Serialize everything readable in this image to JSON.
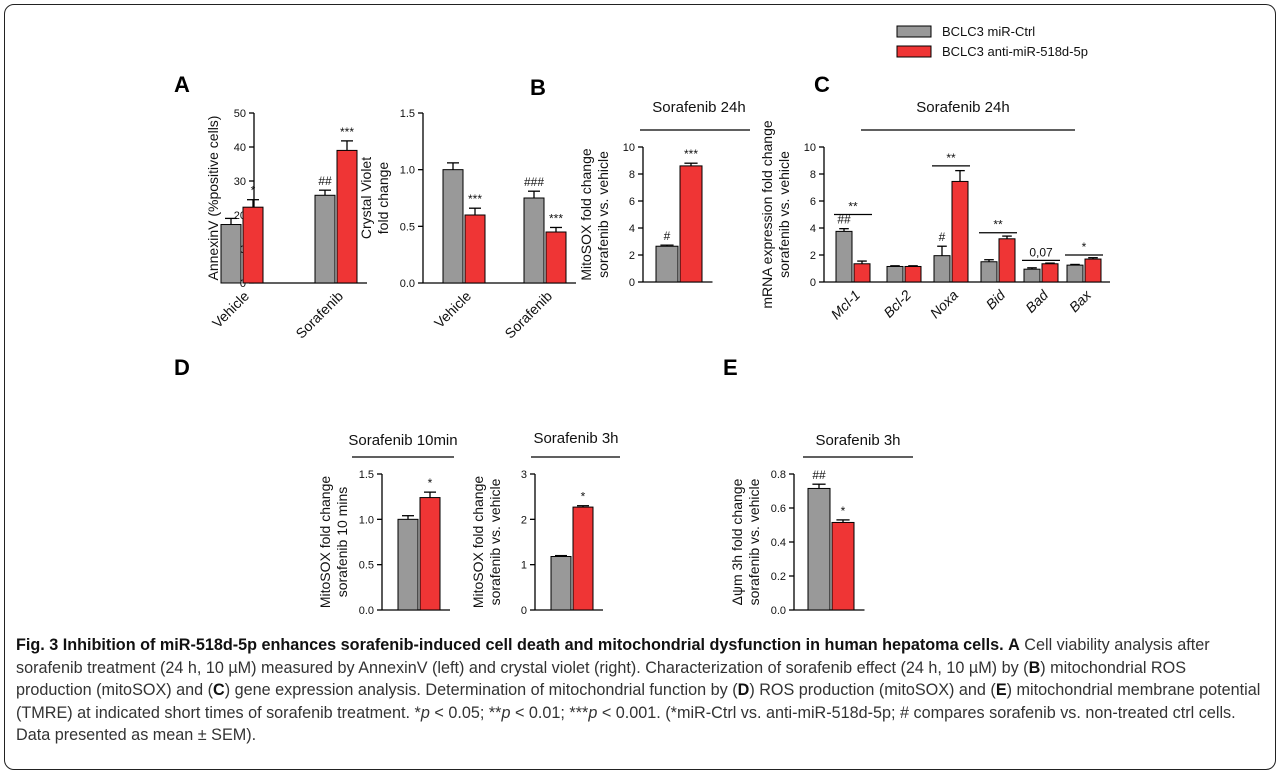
{
  "colors": {
    "ctrl": "#999999",
    "anti": "#ef3535",
    "axis": "#000000"
  },
  "legend": [
    {
      "name": "BCLC3 miR-Ctrl",
      "color": "#999999"
    },
    {
      "name": "BCLC3 anti-miR-518d-5p",
      "color": "#ef3535"
    }
  ],
  "panels": [
    "A",
    "B",
    "C",
    "D",
    "E"
  ],
  "chart_data": [
    {
      "id": "A1",
      "panel": "A",
      "type": "bar",
      "title": "",
      "xlabel": "",
      "ylabel": "AnnexinV (%positive cells)",
      "ylim": [
        0,
        50
      ],
      "yticks": [
        "0",
        "10",
        "20",
        "30",
        "40",
        "50"
      ],
      "categories": [
        "Vehicle",
        "Sorafenib"
      ],
      "category_italic": false,
      "series": [
        {
          "name": "BCLC3 miR-Ctrl",
          "values": [
            17.2,
            25.8
          ],
          "errors": [
            1.8,
            1.5
          ]
        },
        {
          "name": "BCLC3 anti-miR-518d-5p",
          "values": [
            22.3,
            39.0
          ],
          "errors": [
            2.2,
            2.8
          ]
        }
      ],
      "annotations": [
        {
          "text": "*",
          "series": 1,
          "cat": 0
        },
        {
          "text": "##",
          "series": 0,
          "cat": 1
        },
        {
          "text": "***",
          "series": 1,
          "cat": 1
        }
      ]
    },
    {
      "id": "A2",
      "panel": "A",
      "type": "bar",
      "title": "",
      "xlabel": "",
      "ylabel": "Crystal Violet|fold change",
      "ylim": [
        0,
        1.5
      ],
      "yticks": [
        "0.0",
        "0.5",
        "1.0",
        "1.5"
      ],
      "categories": [
        "Vehicle",
        "Sorafenib"
      ],
      "category_italic": false,
      "series": [
        {
          "name": "BCLC3 miR-Ctrl",
          "values": [
            1.0,
            0.75
          ],
          "errors": [
            0.06,
            0.06
          ]
        },
        {
          "name": "BCLC3 anti-miR-518d-5p",
          "values": [
            0.6,
            0.45
          ],
          "errors": [
            0.06,
            0.04
          ]
        }
      ],
      "annotations": [
        {
          "text": "***",
          "series": 1,
          "cat": 0
        },
        {
          "text": "###",
          "series": 0,
          "cat": 1
        },
        {
          "text": "***",
          "series": 1,
          "cat": 1
        }
      ]
    },
    {
      "id": "B",
      "panel": "B",
      "type": "bar",
      "title": "Sorafenib 24h",
      "xlabel": "",
      "ylabel": "MitoSOX fold change|sorafenib vs. vehicle",
      "ylim": [
        0,
        10
      ],
      "yticks": [
        "0",
        "2",
        "4",
        "6",
        "8",
        "10"
      ],
      "categories": [
        ""
      ],
      "category_italic": false,
      "series": [
        {
          "name": "BCLC3 miR-Ctrl",
          "values": [
            2.65
          ],
          "errors": [
            0.08
          ]
        },
        {
          "name": "BCLC3 anti-miR-518d-5p",
          "values": [
            8.6
          ],
          "errors": [
            0.2
          ]
        }
      ],
      "annotations": [
        {
          "text": "#",
          "series": 0,
          "cat": 0
        },
        {
          "text": "***",
          "series": 1,
          "cat": 0
        }
      ]
    },
    {
      "id": "C",
      "panel": "C",
      "type": "bar",
      "title": "Sorafenib 24h",
      "xlabel": "",
      "ylabel": "mRNA expression fold change|sorafenib vs. vehicle",
      "ylim": [
        0,
        10
      ],
      "yticks": [
        "0",
        "2",
        "4",
        "6",
        "8",
        "10"
      ],
      "categories": [
        "Mcl-1",
        "Bcl-2",
        "Noxa",
        "Bid",
        "Bad",
        "Bax"
      ],
      "category_italic": true,
      "series": [
        {
          "name": "BCLC3 miR-Ctrl",
          "values": [
            3.75,
            1.15,
            1.95,
            1.5,
            0.95,
            1.25
          ],
          "errors": [
            0.2,
            0.05,
            0.7,
            0.15,
            0.1,
            0.05
          ]
        },
        {
          "name": "BCLC3 anti-miR-518d-5p",
          "values": [
            1.35,
            1.15,
            7.45,
            3.2,
            1.35,
            1.7
          ],
          "errors": [
            0.2,
            0.05,
            0.8,
            0.2,
            0.05,
            0.1
          ]
        }
      ],
      "annotations": [
        {
          "text": "##",
          "series": 0,
          "cat": 0
        },
        {
          "text": "#",
          "series": 0,
          "cat": 2
        }
      ],
      "brackets": [
        {
          "text": "**",
          "cat": 0,
          "y": 5.0
        },
        {
          "text": "**",
          "cat": 2,
          "y": 8.6
        },
        {
          "text": "**",
          "cat": 3,
          "y": 3.65
        },
        {
          "text": "0,07",
          "cat": 4,
          "y": 1.6
        },
        {
          "text": "*",
          "cat": 5,
          "y": 2.0
        }
      ]
    },
    {
      "id": "D1",
      "panel": "D",
      "type": "bar",
      "title": "Sorafenib 10min",
      "xlabel": "",
      "ylabel": "MitoSOX fold change|sorafenib 10 mins",
      "ylim": [
        0,
        1.5
      ],
      "yticks": [
        "0.0",
        "0.5",
        "1.0",
        "1.5"
      ],
      "categories": [
        ""
      ],
      "category_italic": false,
      "series": [
        {
          "name": "BCLC3 miR-Ctrl",
          "values": [
            1.0
          ],
          "errors": [
            0.04
          ]
        },
        {
          "name": "BCLC3 anti-miR-518d-5p",
          "values": [
            1.24
          ],
          "errors": [
            0.06
          ]
        }
      ],
      "annotations": [
        {
          "text": "*",
          "series": 1,
          "cat": 0
        }
      ]
    },
    {
      "id": "D2",
      "panel": "D",
      "type": "bar",
      "title": "Sorafenib 3h",
      "xlabel": "",
      "ylabel": "MitoSOX fold change|sorafenib vs. vehicle",
      "ylim": [
        0,
        3
      ],
      "yticks": [
        "0",
        "1",
        "2",
        "3"
      ],
      "categories": [
        ""
      ],
      "category_italic": false,
      "series": [
        {
          "name": "BCLC3 miR-Ctrl",
          "values": [
            1.18
          ],
          "errors": [
            0.02
          ]
        },
        {
          "name": "BCLC3 anti-miR-518d-5p",
          "values": [
            2.27
          ],
          "errors": [
            0.03
          ]
        }
      ],
      "annotations": [
        {
          "text": "*",
          "series": 1,
          "cat": 0
        }
      ]
    },
    {
      "id": "E",
      "panel": "E",
      "type": "bar",
      "title": "Sorafenib 3h",
      "xlabel": "",
      "ylabel": "Δψm 3h fold change|sorafenib vs. vehicle",
      "ylim": [
        0,
        0.8
      ],
      "yticks": [
        "0.0",
        "0.2",
        "0.4",
        "0.6",
        "0.8"
      ],
      "categories": [
        ""
      ],
      "category_italic": false,
      "series": [
        {
          "name": "BCLC3 miR-Ctrl",
          "values": [
            0.715
          ],
          "errors": [
            0.025
          ]
        },
        {
          "name": "BCLC3 anti-miR-518d-5p",
          "values": [
            0.515
          ],
          "errors": [
            0.015
          ]
        }
      ],
      "annotations": [
        {
          "text": "##",
          "series": 0,
          "cat": 0
        },
        {
          "text": "*",
          "series": 1,
          "cat": 0
        }
      ]
    }
  ],
  "caption": {
    "lead": "Fig. 3 Inhibition of miR-518d-5p enhances sorafenib-induced cell death and mitochondrial dysfunction in human hepatoma cells.",
    "p1": " Cell viability analysis after sorafenib treatment (24 h, 10 µM) measured by AnnexinV (left) and crystal violet (right). Characterization of sorafenib effect (24 h, 10 µM) by (",
    "p2": ") mitochondrial ROS production (mitoSOX) and (",
    "p3": ") gene expression analysis. Determination of mitochondrial function by (",
    "p4": ") ROS production (mitoSOX) and (",
    "p5": ") mitochondrial membrane potential (TMRE) at indicated short times of sorafenib treatment. *",
    "p6": " < 0.05; **",
    "p7": " < 0.01; ***",
    "p8": " < 0.001. (*miR-Ctrl vs. anti-miR-518d-5p; # compares sorafenib vs. non-treated ctrl cells. Data presented as mean ± SEM).",
    "A": "A",
    "B": "B",
    "C": "C",
    "D": "D",
    "E": "E",
    "p": "p"
  }
}
